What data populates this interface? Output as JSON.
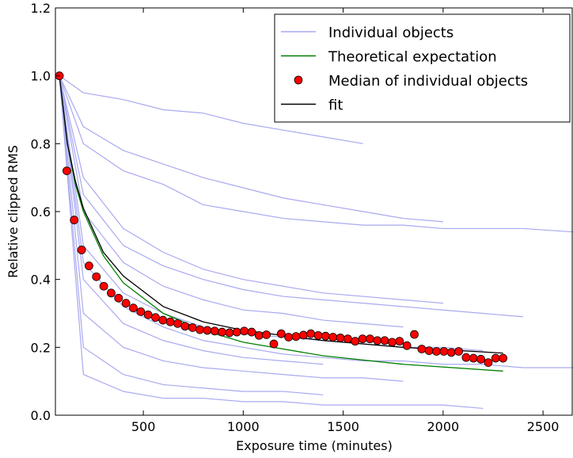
{
  "chart_data": {
    "type": "line",
    "xlabel": "Exposure time (minutes)",
    "ylabel": "Relative clipped RMS",
    "xlim": [
      60,
      2650
    ],
    "ylim": [
      0,
      1.2
    ],
    "xticks": [
      500,
      1000,
      1500,
      2000,
      2500
    ],
    "yticks": [
      {
        "value": 0,
        "label": "0.0"
      },
      0.2,
      0.4,
      0.6,
      0.8,
      {
        "value": 1,
        "label": "1.0"
      },
      1.2
    ],
    "legend": "upper right",
    "series": [
      {
        "name": "Individual objects",
        "type": "line",
        "color": "#a9a9f0",
        "x": [
          80,
          200,
          400,
          600,
          800,
          1000,
          1200,
          1400,
          1600,
          1800,
          2000,
          2200,
          2400,
          2650
        ],
        "lines": [
          [
            1.0,
            0.95,
            0.93,
            0.9,
            0.89,
            0.86,
            0.84,
            0.82,
            0.8,
            null,
            null,
            null,
            null,
            null
          ],
          [
            1.0,
            0.8,
            0.72,
            0.68,
            0.62,
            0.6,
            0.58,
            0.57,
            0.56,
            0.56,
            0.55,
            0.55,
            0.55,
            0.54
          ],
          [
            1.0,
            0.7,
            0.55,
            0.48,
            0.43,
            0.4,
            0.38,
            0.36,
            0.35,
            0.34,
            0.33,
            null,
            null,
            null
          ],
          [
            1.0,
            0.6,
            0.45,
            0.38,
            0.34,
            0.31,
            0.3,
            0.28,
            0.27,
            0.26,
            null,
            null,
            null,
            null
          ],
          [
            1.0,
            0.5,
            0.36,
            0.3,
            0.26,
            0.24,
            0.23,
            0.22,
            0.21,
            0.2,
            0.2,
            0.19,
            null,
            null
          ],
          [
            1.0,
            0.4,
            0.27,
            0.22,
            0.19,
            0.17,
            0.16,
            0.15,
            null,
            null,
            null,
            null,
            null,
            null
          ],
          [
            1.0,
            0.3,
            0.2,
            0.16,
            0.14,
            0.13,
            0.12,
            0.11,
            0.11,
            0.1,
            null,
            null,
            null,
            null
          ],
          [
            1.0,
            0.2,
            0.12,
            0.09,
            0.08,
            0.07,
            0.07,
            0.06,
            null,
            null,
            null,
            null,
            null,
            null
          ],
          [
            1.0,
            0.12,
            0.07,
            0.05,
            0.05,
            0.04,
            0.04,
            0.03,
            0.03,
            0.03,
            0.03,
            0.02,
            null,
            null
          ],
          [
            1.0,
            0.85,
            0.78,
            0.74,
            0.7,
            0.67,
            0.64,
            0.62,
            0.6,
            0.58,
            0.57,
            null,
            null,
            null
          ],
          [
            1.0,
            0.65,
            0.5,
            0.44,
            0.4,
            0.37,
            0.35,
            0.34,
            0.33,
            0.32,
            0.31,
            0.3,
            0.29,
            null
          ],
          [
            1.0,
            0.45,
            0.32,
            0.26,
            0.22,
            0.2,
            0.18,
            0.17,
            0.16,
            0.16,
            0.15,
            0.15,
            0.14,
            0.14
          ]
        ]
      },
      {
        "name": "Theoretical expectation",
        "type": "line",
        "color": "#008000",
        "x": [
          80,
          120,
          160,
          200,
          300,
          400,
          600,
          800,
          1000,
          1400,
          1800,
          2300
        ],
        "values": [
          1.0,
          0.8,
          0.68,
          0.6,
          0.47,
          0.39,
          0.3,
          0.25,
          0.215,
          0.175,
          0.15,
          0.13
        ]
      },
      {
        "name": "Median of individual objects",
        "type": "scatter",
        "color": "#ff0000",
        "x": [
          80,
          117,
          154,
          191,
          228,
          265,
          302,
          339,
          376,
          413,
          450,
          487,
          524,
          561,
          598,
          635,
          672,
          709,
          746,
          783,
          820,
          857,
          894,
          931,
          968,
          1005,
          1042,
          1079,
          1116,
          1153,
          1190,
          1227,
          1264,
          1301,
          1338,
          1375,
          1412,
          1449,
          1486,
          1523,
          1560,
          1597,
          1634,
          1671,
          1708,
          1745,
          1782,
          1819,
          1856,
          1893,
          1930,
          1967,
          2004,
          2041,
          2078,
          2115,
          2152,
          2189,
          2226,
          2263,
          2300
        ],
        "values": [
          1.0,
          0.72,
          0.575,
          0.487,
          0.44,
          0.408,
          0.38,
          0.36,
          0.345,
          0.33,
          0.316,
          0.305,
          0.296,
          0.288,
          0.28,
          0.275,
          0.27,
          0.262,
          0.258,
          0.252,
          0.25,
          0.248,
          0.245,
          0.243,
          0.245,
          0.248,
          0.245,
          0.235,
          0.237,
          0.21,
          0.24,
          0.23,
          0.232,
          0.236,
          0.24,
          0.235,
          0.233,
          0.23,
          0.228,
          0.225,
          0.218,
          0.225,
          0.225,
          0.22,
          0.22,
          0.215,
          0.218,
          0.205,
          0.238,
          0.195,
          0.19,
          0.188,
          0.188,
          0.185,
          0.188,
          0.17,
          0.168,
          0.165,
          0.155,
          0.168,
          0.168
        ]
      },
      {
        "name": "fit",
        "type": "line",
        "color": "#000000",
        "x": [
          80,
          120,
          160,
          200,
          300,
          400,
          600,
          800,
          1000,
          1400,
          1800,
          2300
        ],
        "values": [
          1.0,
          0.8,
          0.69,
          0.61,
          0.48,
          0.41,
          0.32,
          0.275,
          0.25,
          0.22,
          0.2,
          0.183
        ]
      }
    ]
  }
}
